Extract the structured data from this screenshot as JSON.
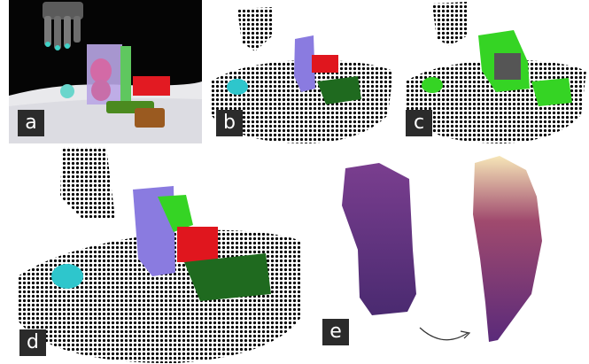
{
  "panels": {
    "a": {
      "label": "a"
    },
    "b": {
      "label": "b"
    },
    "c": {
      "label": "c"
    },
    "d": {
      "label": "d"
    },
    "e": {
      "label": "e"
    }
  },
  "colors": {
    "cyan": "#2ec6cc",
    "purple": "#8a7be0",
    "green": "#1f6a1f",
    "bright_green": "#35d424",
    "red": "#e0161e",
    "gray": "#555555",
    "label_bg": "#2b2b2b"
  }
}
